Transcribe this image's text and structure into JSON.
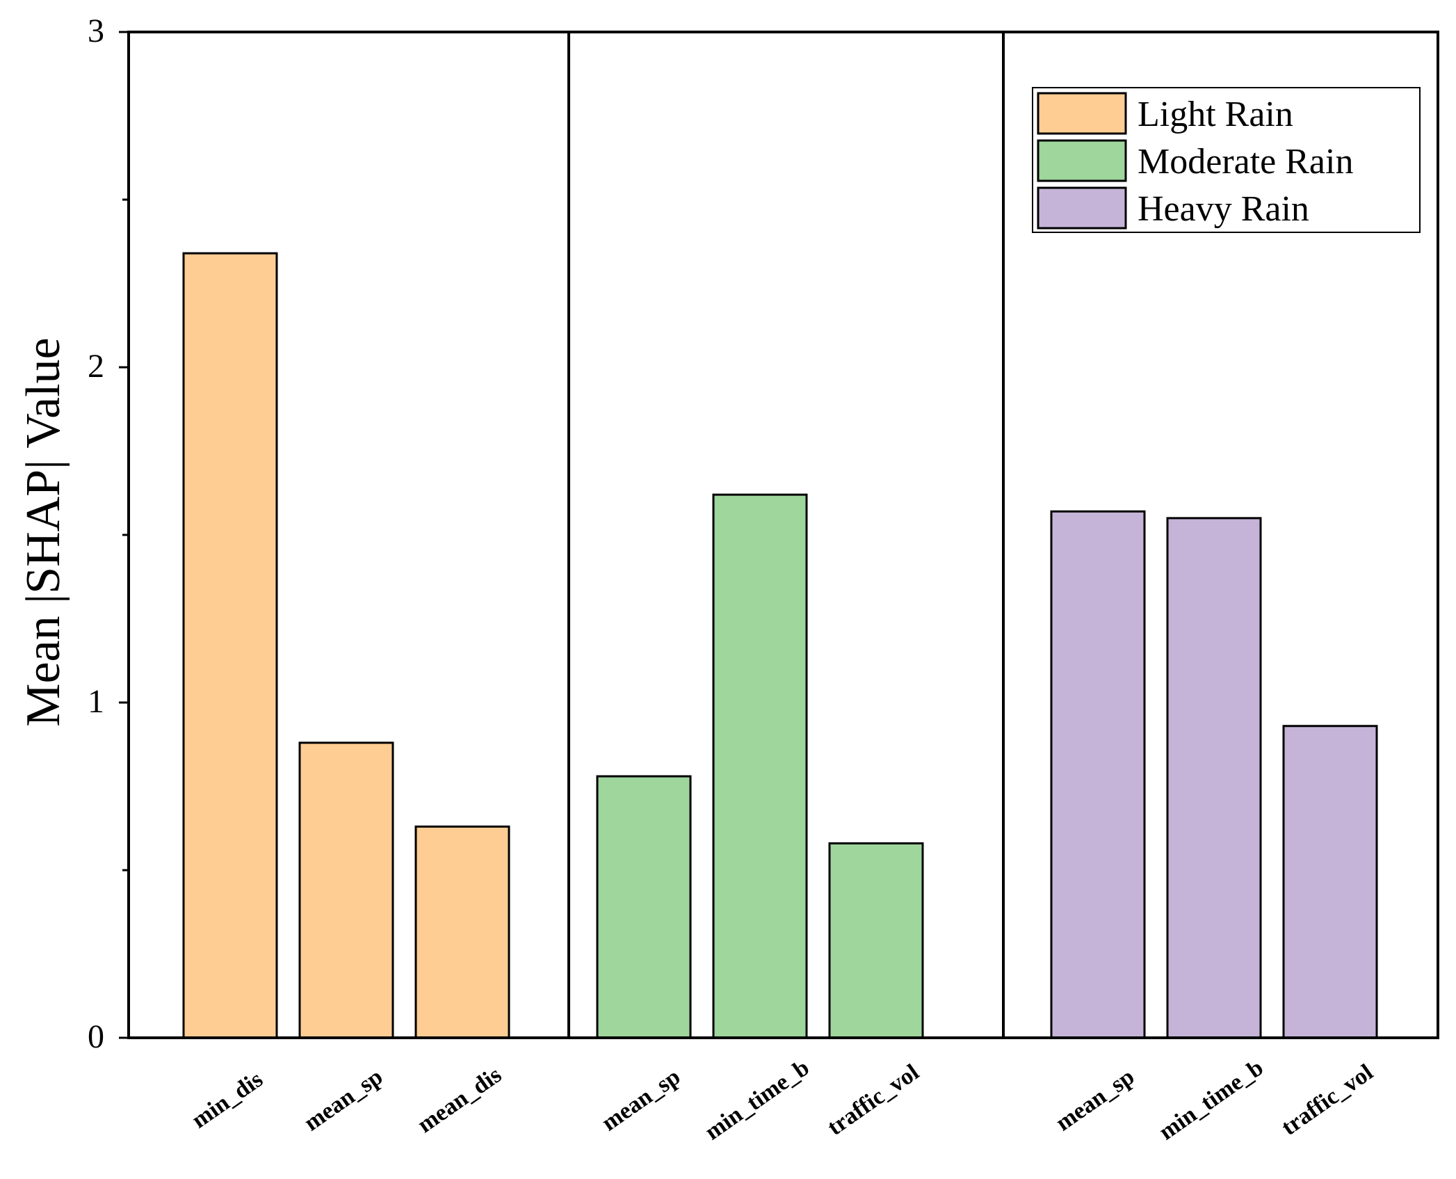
{
  "chart_data": {
    "type": "bar",
    "ylabel": "Mean |SHAP| Value",
    "xlabel": "",
    "ylim": [
      0,
      3
    ],
    "yticks": [
      0,
      1,
      2,
      3
    ],
    "legend_position": "top-right",
    "series": [
      {
        "name": "Light Rain",
        "color": "#FDCD93",
        "categories": [
          "min_dis",
          "mean_sp",
          "mean_dis"
        ],
        "values": [
          2.34,
          0.88,
          0.63
        ]
      },
      {
        "name": "Moderate Rain",
        "color": "#9ED69B",
        "categories": [
          "mean_sp",
          "min_time_b",
          "traffic_vol"
        ],
        "values": [
          0.78,
          1.62,
          0.58
        ]
      },
      {
        "name": "Heavy Rain",
        "color": "#C6B4D8",
        "categories": [
          "mean_sp",
          "min_time_b",
          "traffic_vol"
        ],
        "values": [
          1.57,
          1.55,
          0.93
        ]
      }
    ]
  }
}
